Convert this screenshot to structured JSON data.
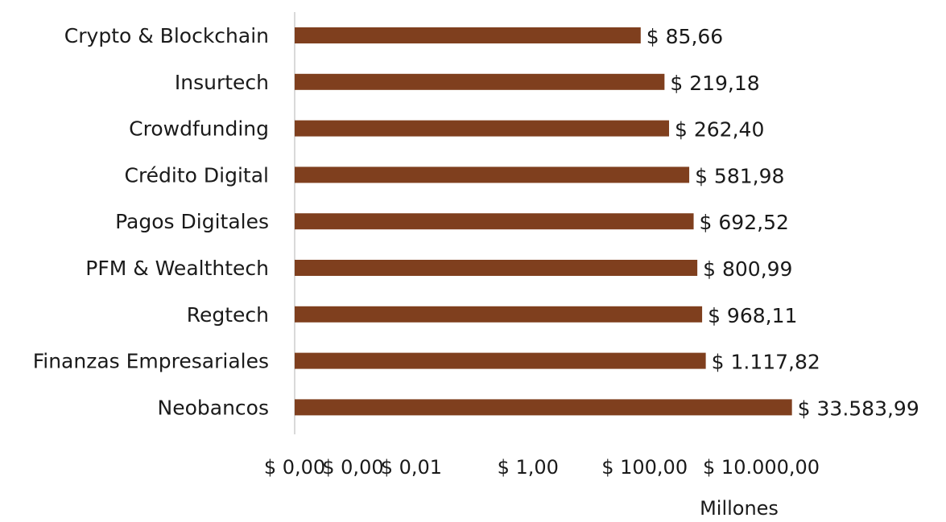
{
  "chart_data": {
    "type": "bar",
    "orientation": "horizontal",
    "xscale": "log",
    "categories": [
      "Crypto & Blockchain",
      "Insurtech",
      "Crowdfunding",
      "Crédito Digital",
      "Pagos Digitales",
      "PFM & Wealthtech",
      "Regtech",
      "Finanzas Empresariales",
      "Neobancos"
    ],
    "values": [
      85.66,
      219.18,
      262.4,
      581.98,
      692.52,
      800.99,
      968.11,
      1117.82,
      33583.99
    ],
    "value_labels": [
      "$ 85,66",
      "$ 219,18",
      "$ 262,40",
      "$ 581,98",
      "$ 692,52",
      "$ 800,99",
      "$ 968,11",
      "$ 1.117,82",
      "$ 33.583,99"
    ],
    "xticks": [
      0.0001,
      0.001,
      0.01,
      1,
      100,
      10000
    ],
    "xtick_labels": [
      "$ 0,00",
      "$ 0,00",
      "$ 0,01",
      "$ 1,00",
      "$ 100,00",
      "$ 10.000,00"
    ],
    "xlim": [
      0.0001,
      100000
    ],
    "xlabel": "Millones",
    "ylabel": "",
    "title": "",
    "grid": false,
    "legend": "none",
    "bar_color": "#7f3f1e",
    "axis_color": "#d9d9d9"
  }
}
